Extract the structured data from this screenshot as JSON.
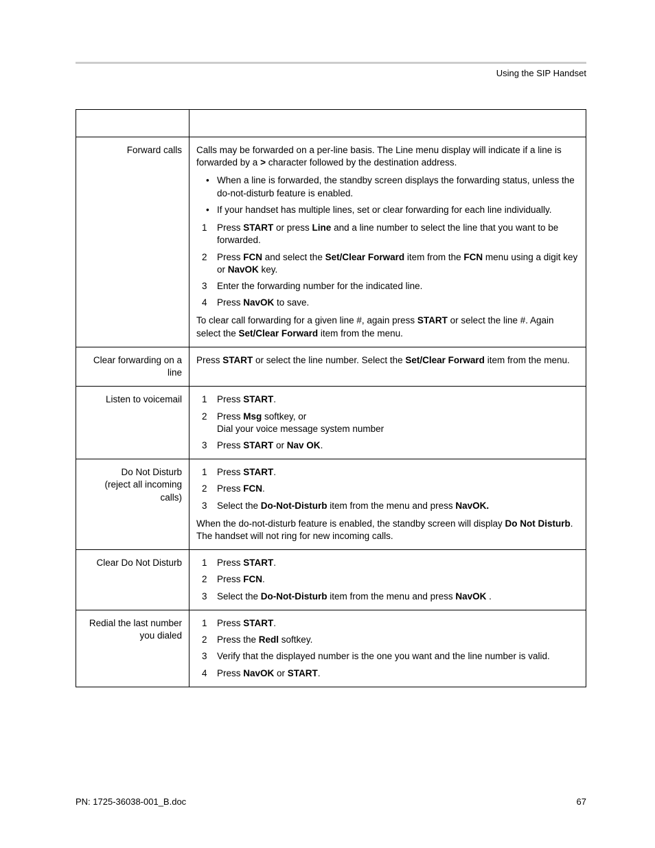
{
  "header": {
    "title": "Using the SIP Handset"
  },
  "rows": [
    {
      "label": "Forward calls",
      "content": {
        "intro": {
          "pre": "Calls may be forwarded on a per-line basis. The Line menu display will indicate if a line is forwarded by a ",
          "b1": ">",
          "post": " character followed by the destination address."
        },
        "bullets": [
          "When a line is forwarded, the standby screen displays the forwarding status, unless the do-not-disturb feature is enabled.",
          "If your handset has multiple lines, set or clear forwarding for each line individually."
        ],
        "steps": [
          {
            "pre": "Press ",
            "b1": "START",
            "mid1": " or press ",
            "b2": "Line",
            "post": " and a line number to select the line that you want to be forwarded."
          },
          {
            "pre": "Press ",
            "b1": "FCN",
            "mid1": " and select the ",
            "b2": "Set/Clear Forward",
            "mid2": " item from the ",
            "b3": "FCN",
            "mid3": " menu using a digit key or ",
            "b4": "NavOK",
            "post": " key."
          },
          {
            "pre": "Enter the forwarding number for the indicated line."
          },
          {
            "pre": "Press ",
            "b1": "NavOK",
            "post": " to save."
          }
        ],
        "outro": {
          "pre": "To clear call forwarding for a given line #, again press ",
          "b1": "START",
          "mid1": " or select the line #. Again select the ",
          "b2": "Set/Clear Forward",
          "post": " item from the menu."
        }
      }
    },
    {
      "label": "Clear forwarding on a line",
      "content": {
        "intro": {
          "pre": "Press ",
          "b1": "START",
          "mid1": " or select the line number. Select the ",
          "b2": "Set/Clear Forward",
          "post": " item from the menu."
        }
      }
    },
    {
      "label": "Listen to voicemail",
      "content": {
        "steps": [
          {
            "pre": "Press ",
            "b1": "START",
            "post": "."
          },
          {
            "pre": "Press ",
            "b1": "Msg",
            "post": " softkey, or",
            "second_line": "Dial your voice message system number"
          },
          {
            "pre": "Press ",
            "b1": "START",
            "mid1": " or ",
            "b2": "Nav OK",
            "post": "."
          }
        ]
      }
    },
    {
      "label": "Do Not Disturb",
      "label2": "(reject all incoming calls)",
      "content": {
        "steps": [
          {
            "pre": "Press ",
            "b1": "START",
            "post": "."
          },
          {
            "pre": "Press ",
            "b1": "FCN",
            "post": "."
          },
          {
            "pre": "Select the ",
            "b1": "Do-Not-Disturb",
            "mid1": " item from the menu and press ",
            "b2": "NavOK.",
            "post": ""
          }
        ],
        "outro": {
          "pre": "When the do-not-disturb feature is enabled, the standby screen will display ",
          "b1": "Do Not Disturb",
          "post": ". The handset will not ring for new incoming calls."
        }
      }
    },
    {
      "label": "Clear Do Not Disturb",
      "content": {
        "steps": [
          {
            "pre": "Press ",
            "b1": "START",
            "post": "."
          },
          {
            "pre": "Press ",
            "b1": "FCN",
            "post": "."
          },
          {
            "pre": "Select the ",
            "b1": "Do-Not-Disturb",
            "mid1": " item from the menu and press ",
            "b2": "NavOK",
            "post": " ."
          }
        ]
      }
    },
    {
      "label": "Redial the last number you dialed",
      "content": {
        "steps": [
          {
            "pre": "Press ",
            "b1": "START",
            "post": "."
          },
          {
            "pre": "Press the ",
            "b1": "Redl",
            "post": " softkey."
          },
          {
            "pre": "Verify that the displayed number is the one you want and the line number is valid."
          },
          {
            "pre": "Press ",
            "b1": "NavOK",
            "mid1": " or ",
            "b2": "START",
            "post": "."
          }
        ]
      }
    }
  ],
  "footer": {
    "pn": "PN: 1725-36038-001_B.doc",
    "page": "67"
  }
}
